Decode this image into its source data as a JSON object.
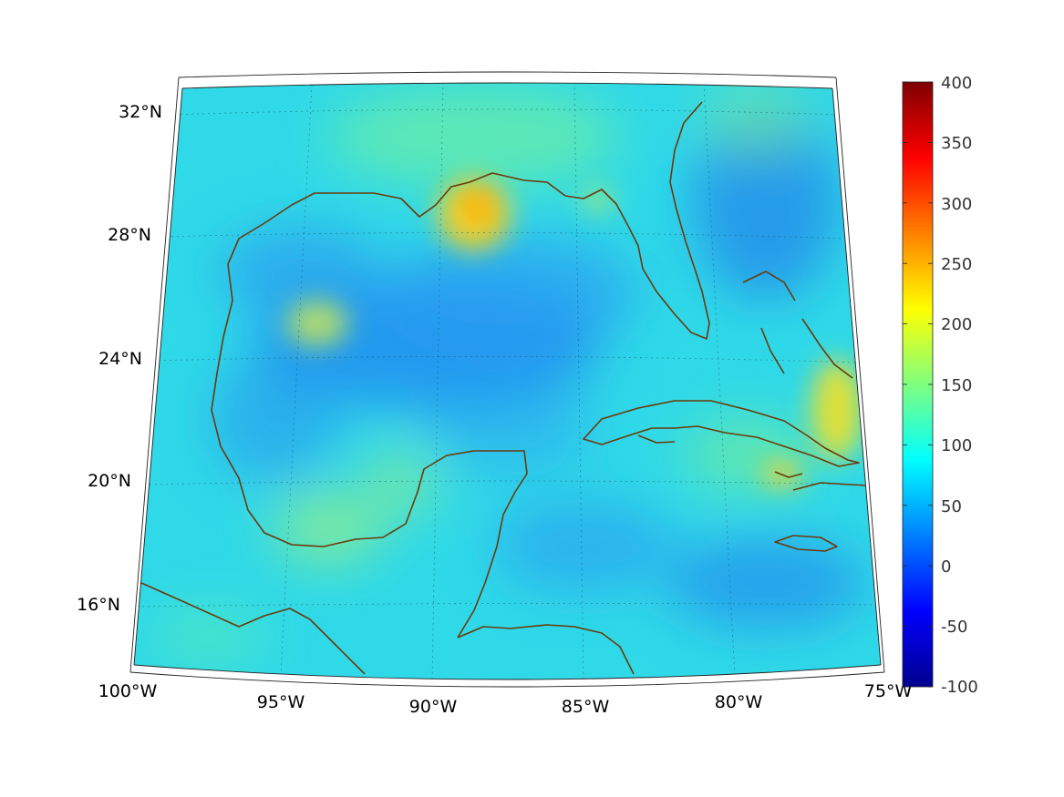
{
  "map": {
    "projection": "conic",
    "lon_range": [
      -100,
      -75
    ],
    "lat_range": [
      14,
      33
    ],
    "lon_ticks": [
      "100°W",
      "95°W",
      "90°W",
      "85°W",
      "80°W",
      "75°W"
    ],
    "lat_ticks": [
      "32°N",
      "28°N",
      "24°N",
      "20°N",
      "16°N"
    ],
    "gridlines": true,
    "coastline_color": "#6b3a0a",
    "colormap": "jet",
    "field_description": "Values mostly 50–150; highs (~200–260) near Mississippi delta, off Bahamas and Cuba; lows (~30–60) over central Gulf and Caribbean"
  },
  "colorbar": {
    "ticks": [
      "400",
      "350",
      "300",
      "250",
      "200",
      "150",
      "100",
      "50",
      "0",
      "-50",
      "-100"
    ],
    "min": -100,
    "max": 400,
    "colormap": "jet"
  }
}
